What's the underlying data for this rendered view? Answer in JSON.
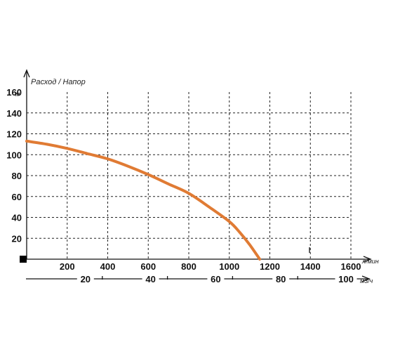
{
  "chart_data": {
    "type": "line",
    "title": "Расход / Напор",
    "y_axis": {
      "unit": "м",
      "ticks": [
        20,
        40,
        60,
        80,
        100,
        120,
        140,
        160
      ],
      "tick_labels": [
        "20",
        "40",
        "60",
        "80",
        "100",
        "120",
        "140",
        "160"
      ],
      "ylim": [
        0,
        160
      ]
    },
    "x_axis": {
      "unit": "л/мин",
      "ticks": [
        200,
        400,
        600,
        800,
        1000,
        1200,
        1400,
        1600
      ],
      "tick_labels": [
        "200",
        "400",
        "600",
        "800",
        "1000",
        "1200",
        "1400",
        "1600"
      ],
      "xlim": [
        0,
        1600
      ]
    },
    "x2_axis": {
      "unit": "м3/ч",
      "ticks": [
        20,
        40,
        60,
        80,
        100
      ],
      "tick_labels": [
        "20",
        "40",
        "60",
        "80",
        "100"
      ],
      "xlim": [
        0,
        100
      ]
    },
    "grid": true,
    "colors": {
      "curve": "#e07b34",
      "axis": "#111111",
      "grid": "#222222"
    },
    "series": [
      {
        "x": [
          0,
          100,
          200,
          300,
          400,
          500,
          600,
          700,
          800,
          900,
          1000,
          1050,
          1100,
          1150
        ],
        "y": [
          113,
          110,
          106,
          101,
          96,
          89,
          81,
          72,
          63,
          50,
          36,
          26,
          14,
          0
        ]
      }
    ]
  }
}
